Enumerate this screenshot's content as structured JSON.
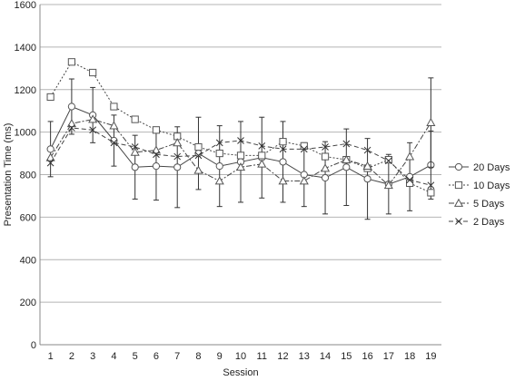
{
  "chart_data": {
    "type": "line",
    "xlabel": "Session",
    "ylabel": "Presentation Time (ms)",
    "ylim": [
      0,
      1600
    ],
    "yticks": [
      0,
      200,
      400,
      600,
      800,
      1000,
      1200,
      1400,
      1600
    ],
    "x": [
      1,
      2,
      3,
      4,
      5,
      6,
      7,
      8,
      9,
      10,
      11,
      12,
      13,
      14,
      15,
      16,
      17,
      18,
      19
    ],
    "grid": true,
    "legend_position": "right",
    "series": [
      {
        "name": "20 Days",
        "marker": "circle",
        "dash": "solid",
        "values": [
          920,
          1120,
          1080,
          960,
          835,
          840,
          835,
          900,
          840,
          860,
          880,
          860,
          800,
          785,
          835,
          780,
          755,
          790,
          845
        ],
        "errors": [
          130,
          130,
          130,
          120,
          150,
          160,
          190,
          170,
          190,
          190,
          190,
          190,
          150,
          170,
          180,
          190,
          140,
          160,
          160
        ]
      },
      {
        "name": "10 Days",
        "marker": "square",
        "dash": "dotted",
        "values": [
          1165,
          1330,
          1280,
          1120,
          1060,
          1010,
          980,
          930,
          900,
          890,
          890,
          955,
          935,
          885,
          870,
          830,
          870,
          760,
          715
        ]
      },
      {
        "name": "5 Days",
        "marker": "triangle",
        "dash": "dashdot",
        "values": [
          880,
          1040,
          1060,
          1030,
          905,
          915,
          950,
          820,
          770,
          835,
          850,
          770,
          770,
          830,
          870,
          840,
          750,
          885,
          1045
        ],
        "errors": [
          0,
          0,
          0,
          0,
          0,
          0,
          0,
          0,
          0,
          0,
          0,
          0,
          0,
          0,
          0,
          0,
          0,
          0,
          210
        ]
      },
      {
        "name": "2 Days",
        "marker": "x",
        "dash": "dashed",
        "values": [
          855,
          1020,
          1010,
          950,
          930,
          895,
          885,
          890,
          950,
          960,
          935,
          920,
          920,
          930,
          945,
          915,
          865,
          775,
          750
        ]
      }
    ]
  }
}
